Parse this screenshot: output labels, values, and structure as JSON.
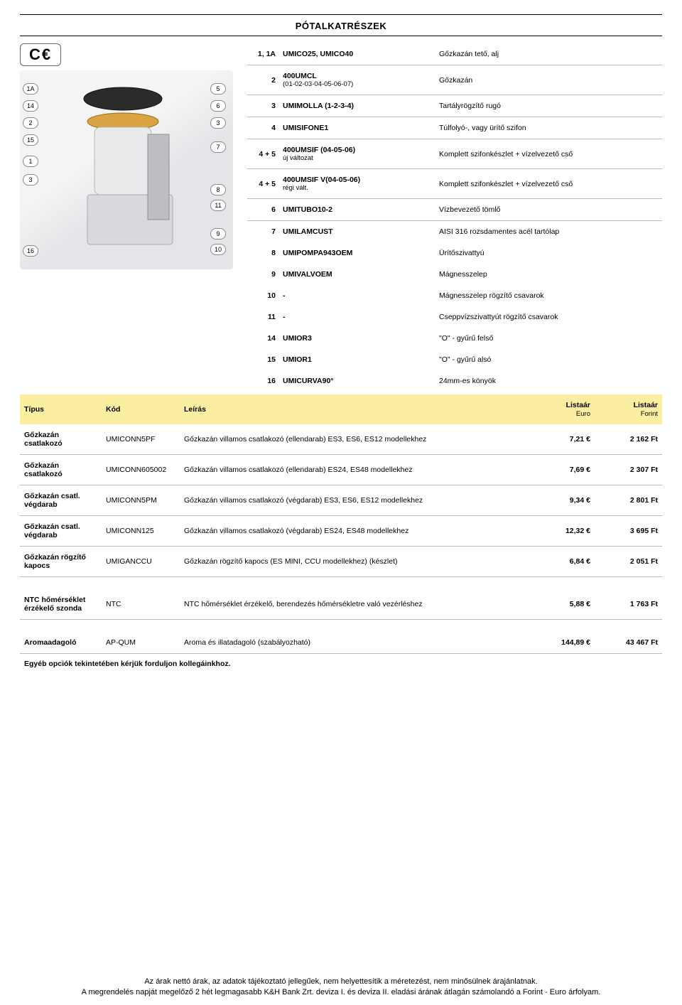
{
  "title": "PÓTALKATRÉSZEK",
  "ce_mark": "C€",
  "callouts": [
    "1A",
    "14",
    "2",
    "15",
    "1",
    "3",
    "16",
    "5",
    "6",
    "3",
    "7",
    "8",
    "11",
    "9",
    "10"
  ],
  "parts": [
    {
      "num": "1, 1A",
      "code": "UMICO25, UMICO40",
      "desc": "Gőzkazán tető, alj",
      "sep": true
    },
    {
      "num": "2",
      "code": "400UMCL",
      "sub": "(01-02-03-04-05-06-07)",
      "desc": "Gőzkazán",
      "sep": true
    },
    {
      "num": "3",
      "code": "UMIMOLLA (1-2-3-4)",
      "desc": "Tartályrögzítő rugó",
      "sep": true
    },
    {
      "num": "4",
      "code": "UMISIFONE1",
      "desc": "Túlfolyó-, vagy ürítő szifon",
      "sep": true
    },
    {
      "num": "4 + 5",
      "code": "400UMSIF (04-05-06)",
      "sub": "új változat",
      "desc": "Komplett szifonkészlet + vízelvezető cső",
      "sep": true
    },
    {
      "num": "4 + 5",
      "code": "400UMSIF V(04-05-06)",
      "sub": "régi vált.",
      "desc": "Komplett szifonkészlet + vízelvezető cső",
      "sep": true
    },
    {
      "num": "6",
      "code": "UMITUBO10-2",
      "desc": "Vízbevezető tömlő",
      "sep": true
    },
    {
      "num": "7",
      "code": "UMILAMCUST",
      "desc": "AISI 316 rozsdamentes acél tartólap",
      "sep": false
    },
    {
      "num": "8",
      "code": "UMIPOMPA943OEM",
      "desc": "Ürítőszivattyú",
      "sep": false
    },
    {
      "num": "9",
      "code": "UMIVALVOEM",
      "desc": "Mágnesszelep",
      "sep": false
    },
    {
      "num": "10",
      "code": "-",
      "desc": "Mágnesszelep rögzítő csavarok",
      "sep": false
    },
    {
      "num": "11",
      "code": "-",
      "desc": "Cseppvízszivattyút rögzítő csavarok",
      "sep": false
    },
    {
      "num": "14",
      "code": "UMIOR3",
      "desc": "\"O\" - gyűrű felső",
      "sep": false
    },
    {
      "num": "15",
      "code": "UMIOR1",
      "desc": "\"O\" - gyűrű alsó",
      "sep": false
    },
    {
      "num": "16",
      "code": "UMICURVA90°",
      "desc": "24mm-es könyök",
      "sep": false
    }
  ],
  "header": {
    "type": "Típus",
    "code": "Kód",
    "desc": "Leírás",
    "eur": "Listaár",
    "eur_sub": "Euro",
    "huf": "Listaár",
    "huf_sub": "Forint"
  },
  "products": [
    {
      "type": "Gőzkazán csatlakozó",
      "code": "UMICONN5PF",
      "desc": "Gőzkazán villamos csatlakozó (ellendarab) ES3, ES6, ES12 modellekhez",
      "eur": "7,21 €",
      "huf": "2 162 Ft",
      "line": true,
      "gap": false
    },
    {
      "type": "Gőzkazán csatlakozó",
      "code": "UMICONN605002",
      "desc": "Gőzkazán villamos csatlakozó (ellendarab) ES24, ES48 modellekhez",
      "eur": "7,69 €",
      "huf": "2 307 Ft",
      "line": true,
      "gap": false
    },
    {
      "type": "Gőzkazán csatl. végdarab",
      "code": "UMICONN5PM",
      "desc": "Gőzkazán villamos csatlakozó (végdarab) ES3, ES6, ES12 modellekhez",
      "eur": "9,34 €",
      "huf": "2 801 Ft",
      "line": true,
      "gap": false
    },
    {
      "type": "Gőzkazán csatl. végdarab",
      "code": "UMICONN125",
      "desc": "Gőzkazán villamos csatlakozó (végdarab) ES24, ES48 modellekhez",
      "eur": "12,32 €",
      "huf": "3 695 Ft",
      "line": true,
      "gap": false
    },
    {
      "type": "Gőzkazán rögzítő kapocs",
      "code": "UMIGANCCU",
      "desc": "Gőzkazán rögzítő kapocs (ES MINI, CCU modellekhez) (készlet)",
      "eur": "6,84 €",
      "huf": "2 051 Ft",
      "line": true,
      "gap": false
    },
    {
      "type": "NTC hőmérséklet érzékelő szonda",
      "code": "NTC",
      "desc": "NTC hőmérséklet érzékelő, berendezés hőmérsékletre való vezérléshez",
      "eur": "5,88 €",
      "huf": "1 763 Ft",
      "line": true,
      "gap": true
    },
    {
      "type": "Aromaadagoló",
      "code": "AP-QUM",
      "desc": "Aroma és illatadagoló (szabályozható)",
      "eur": "144,89 €",
      "huf": "43 467 Ft",
      "line": true,
      "gap": true
    }
  ],
  "footnote": "Egyéb opciók tekintetében kérjük forduljon kollegáinkhoz.",
  "footer1": "Az árak nettó árak, az adatok tájékoztató jellegűek, nem helyettesítik a méretezést, nem minősülnek árajánlatnak.",
  "footer2": "A megrendelés napját megelőző 2 hét legmagasabb K&H Bank Zrt. deviza I. és deviza II. eladási árának átlagán számolandó a Forint - Euro árfolyam.",
  "colors": {
    "highlight": "#fbeea0",
    "rule": "#bbbbbb"
  }
}
